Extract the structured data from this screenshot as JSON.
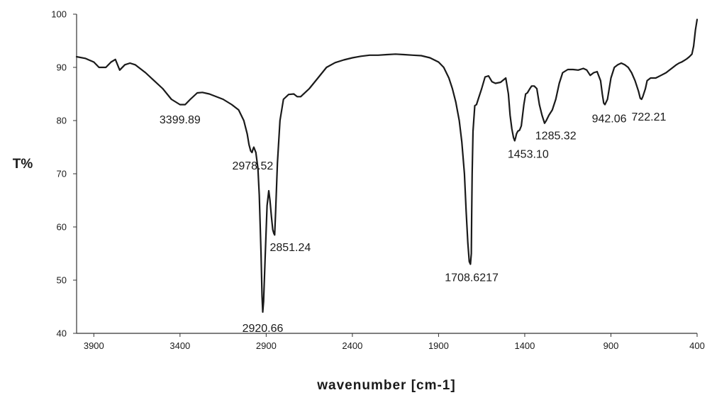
{
  "chart_data": {
    "type": "line",
    "title": "",
    "xlabel": "wavenumber [cm-1]",
    "ylabel": "T%",
    "xlim": [
      4000,
      400
    ],
    "x_reversed": true,
    "ylim": [
      40,
      100
    ],
    "x_ticks": [
      {
        "value": 3900,
        "label": "3900"
      },
      {
        "value": 3400,
        "label": "3400"
      },
      {
        "value": 2900,
        "label": "2900"
      },
      {
        "value": 2400,
        "label": "2400"
      },
      {
        "value": 1900,
        "label": "1900"
      },
      {
        "value": 1400,
        "label": "1400"
      },
      {
        "value": 900,
        "label": "900"
      },
      {
        "value": 400,
        "label": "400"
      }
    ],
    "y_ticks": [
      {
        "value": 40,
        "label": "40"
      },
      {
        "value": 50,
        "label": "50"
      },
      {
        "value": 60,
        "label": "60"
      },
      {
        "value": 70,
        "label": "70"
      },
      {
        "value": 80,
        "label": "80"
      },
      {
        "value": 90,
        "label": "90"
      },
      {
        "value": 100,
        "label": "100"
      }
    ],
    "grid": false,
    "legend": "none",
    "line_color": "#1a1a1a",
    "series": [
      {
        "x": [
          4000,
          3950,
          3900,
          3870,
          3830,
          3800,
          3775,
          3750,
          3720,
          3690,
          3660,
          3600,
          3550,
          3500,
          3450,
          3400,
          3370,
          3340,
          3300,
          3270,
          3230,
          3150,
          3100,
          3060,
          3030,
          3010,
          3000,
          2990,
          2982,
          2978,
          2972,
          2960,
          2948,
          2940,
          2930,
          2924,
          2920,
          2915,
          2905,
          2895,
          2885,
          2878,
          2870,
          2862,
          2856,
          2851,
          2845,
          2835,
          2820,
          2800,
          2770,
          2740,
          2720,
          2700,
          2650,
          2600,
          2550,
          2500,
          2450,
          2400,
          2350,
          2300,
          2250,
          2200,
          2150,
          2100,
          2050,
          2000,
          1950,
          1900,
          1870,
          1840,
          1820,
          1800,
          1780,
          1765,
          1750,
          1740,
          1730,
          1722,
          1715,
          1710,
          1708,
          1705,
          1700,
          1690,
          1680,
          1670,
          1650,
          1630,
          1610,
          1590,
          1570,
          1540,
          1510,
          1495,
          1485,
          1475,
          1465,
          1458,
          1453,
          1448,
          1440,
          1430,
          1420,
          1405,
          1395,
          1385,
          1370,
          1360,
          1345,
          1330,
          1315,
          1300,
          1290,
          1285,
          1275,
          1260,
          1240,
          1220,
          1200,
          1180,
          1150,
          1120,
          1090,
          1060,
          1040,
          1020,
          1000,
          980,
          960,
          950,
          942,
          935,
          920,
          900,
          880,
          860,
          840,
          820,
          800,
          780,
          760,
          740,
          730,
          722,
          715,
          700,
          690,
          670,
          640,
          610,
          580,
          560,
          540,
          520,
          505,
          490,
          475,
          460,
          445,
          430,
          420,
          410,
          400
        ],
        "y": [
          92.0,
          91.7,
          91.0,
          90.0,
          90.0,
          91.0,
          91.5,
          89.5,
          90.5,
          90.8,
          90.5,
          89.0,
          87.5,
          86.0,
          84.0,
          83.0,
          83.0,
          84.0,
          85.2,
          85.3,
          85.0,
          84.0,
          83.0,
          82.0,
          80.0,
          77.5,
          75.5,
          74.3,
          74.0,
          74.5,
          75.0,
          74.0,
          71.0,
          66.0,
          55.0,
          47.0,
          44.0,
          46.0,
          55.0,
          64.0,
          66.8,
          65.0,
          62.0,
          59.5,
          58.8,
          58.5,
          63.0,
          72.0,
          80.0,
          84.0,
          84.9,
          85.0,
          84.5,
          84.5,
          86.0,
          88.0,
          90.0,
          90.9,
          91.4,
          91.8,
          92.1,
          92.3,
          92.3,
          92.4,
          92.5,
          92.4,
          92.3,
          92.2,
          91.8,
          91.0,
          90.0,
          88.0,
          86.0,
          83.5,
          80.0,
          76.0,
          70.0,
          63.0,
          57.0,
          53.5,
          53.0,
          55.0,
          62.0,
          70.0,
          78.0,
          82.8,
          83.0,
          84.0,
          86.0,
          88.2,
          88.4,
          87.3,
          87.0,
          87.2,
          88.0,
          85.0,
          81.0,
          78.5,
          76.8,
          76.2,
          76.8,
          77.5,
          78.0,
          78.2,
          79.0,
          83.0,
          85.0,
          85.2,
          86.0,
          86.5,
          86.5,
          86.0,
          83.0,
          81.0,
          80.0,
          79.5,
          80.0,
          81.0,
          82.0,
          84.0,
          87.0,
          89.0,
          89.6,
          89.6,
          89.5,
          89.8,
          89.5,
          88.5,
          89.0,
          89.2,
          87.5,
          85.0,
          83.3,
          83.0,
          84.0,
          88.0,
          90.0,
          90.5,
          90.8,
          90.5,
          90.0,
          89.0,
          87.5,
          85.5,
          84.2,
          84.0,
          84.5,
          86.0,
          87.5,
          88.0,
          88.0,
          88.5,
          89.0,
          89.5,
          90.0,
          90.5,
          90.8,
          91.0,
          91.3,
          91.6,
          92.0,
          92.5,
          94.0,
          97.0,
          99.0
        ]
      }
    ],
    "annotations": [
      {
        "text": "3399.89",
        "x": 3400,
        "y": 79.5
      },
      {
        "text": "2978.52",
        "x": 2978,
        "y": 70.8
      },
      {
        "text": "2851.24",
        "x": 2760,
        "y": 55.5
      },
      {
        "text": "2920.66",
        "x": 2920,
        "y": 40.3
      },
      {
        "text": "1708.6217",
        "x": 1708,
        "y": 49.8
      },
      {
        "text": "1453.10",
        "x": 1380,
        "y": 73.0
      },
      {
        "text": "1285.32",
        "x": 1220,
        "y": 76.5
      },
      {
        "text": "942.06",
        "x": 910,
        "y": 79.7
      },
      {
        "text": "722.21",
        "x": 680,
        "y": 80.0
      }
    ]
  }
}
